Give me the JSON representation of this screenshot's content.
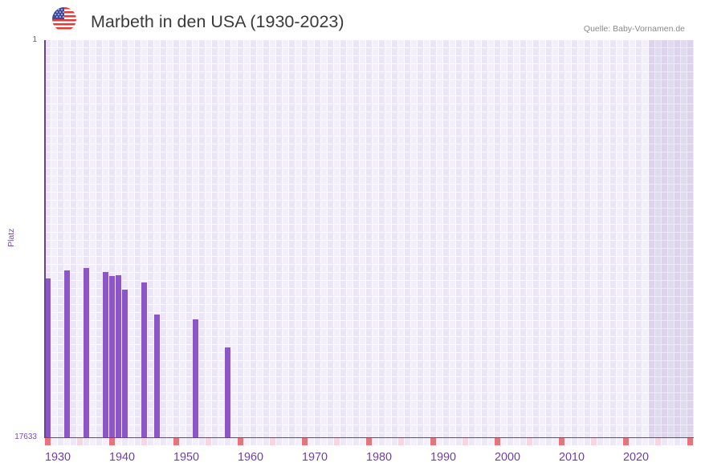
{
  "header": {
    "title": "Marbeth in den USA (1930-2023)",
    "source": "Quelle: Baby-Vornamen.de",
    "flag_icon": "us-flag-icon"
  },
  "axes": {
    "y_label": "Platz",
    "y_tick_top": "1",
    "y_tick_bottom": "17633"
  },
  "chart_data": {
    "type": "bar",
    "title": "Marbeth in den USA (1930-2023)",
    "xlabel": "",
    "ylabel": "Platz",
    "ylim": [
      1,
      17633
    ],
    "y_inverted": true,
    "y_ticks": [
      1,
      17633
    ],
    "x_range": [
      1930,
      2030
    ],
    "x_ticks": [
      1930,
      1940,
      1950,
      1960,
      1970,
      1980,
      1990,
      2000,
      2010,
      2020
    ],
    "categories": [
      1930,
      1933,
      1936,
      1939,
      1940,
      1941,
      1942,
      1945,
      1947,
      1953,
      1958
    ],
    "values": [
      10580,
      10220,
      10120,
      10300,
      10470,
      10440,
      11080,
      10760,
      12180,
      12400,
      13640
    ],
    "shaded_future_from": 2024,
    "grid": true,
    "legend": "none",
    "colors": {
      "bar": "#8d56c8",
      "axis": "#6b3fa0",
      "decade_marker": "#e8737a",
      "half_decade_marker": "#f6d7e1",
      "cell_dark": "#ece8f7",
      "cell_light": "#f3f0fb"
    }
  }
}
